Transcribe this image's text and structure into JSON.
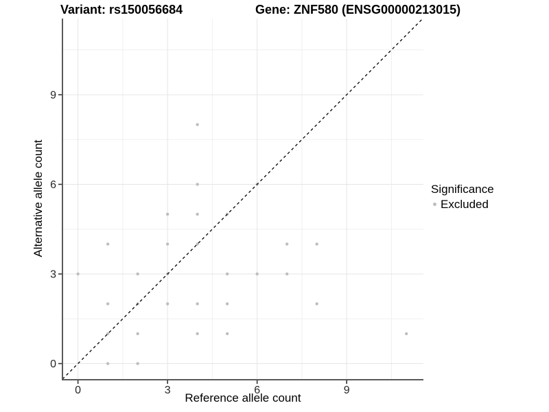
{
  "figure": {
    "title_left": "Variant: rs150056684",
    "title_right": "Gene: ZNF580 (ENSG00000213015)"
  },
  "chart_data": {
    "type": "scatter",
    "title": "Variant: rs150056684   Gene: ZNF580 (ENSG00000213015)",
    "xlabel": "Reference allele count",
    "ylabel": "Alternative allele count",
    "xlim": [
      -0.52,
      11.57
    ],
    "ylim": [
      -0.54,
      11.55
    ],
    "x_major_ticks": [
      0,
      3,
      6,
      9
    ],
    "y_major_ticks": [
      0,
      3,
      6,
      9
    ],
    "x_minor_ticks": [
      1.5,
      4.5,
      7.5,
      10.5
    ],
    "y_minor_ticks": [
      1.5,
      4.5,
      7.5,
      10.5
    ],
    "grid": true,
    "identity_line": {
      "type": "y=x",
      "style": "dashed",
      "color": "#000000"
    },
    "legend": {
      "position": "right",
      "title": "Significance",
      "items": [
        {
          "label": "Excluded",
          "color": "#BEBEBE"
        }
      ]
    },
    "series": [
      {
        "name": "Excluded",
        "color": "#BEBEBE",
        "points": [
          [
            0,
            3
          ],
          [
            1,
            0
          ],
          [
            1,
            1
          ],
          [
            1,
            2
          ],
          [
            1,
            4
          ],
          [
            2,
            0
          ],
          [
            2,
            1
          ],
          [
            2,
            2
          ],
          [
            2,
            3
          ],
          [
            3,
            2
          ],
          [
            3,
            3
          ],
          [
            3,
            4
          ],
          [
            3,
            5
          ],
          [
            4,
            1
          ],
          [
            4,
            2
          ],
          [
            4,
            4
          ],
          [
            4,
            5
          ],
          [
            4,
            6
          ],
          [
            4,
            8
          ],
          [
            5,
            1
          ],
          [
            5,
            2
          ],
          [
            5,
            3
          ],
          [
            5,
            5
          ],
          [
            6,
            3
          ],
          [
            6,
            6
          ],
          [
            7,
            3
          ],
          [
            7,
            4
          ],
          [
            8,
            2
          ],
          [
            8,
            4
          ],
          [
            11,
            1
          ]
        ]
      }
    ],
    "colors": {
      "grid_major": "#E5E5E5",
      "grid_minor": "#F0F0F0",
      "axis_line": "#595959",
      "tick_label": "#262626",
      "point": "#BEBEBE",
      "background": "#FFFFFF"
    }
  }
}
